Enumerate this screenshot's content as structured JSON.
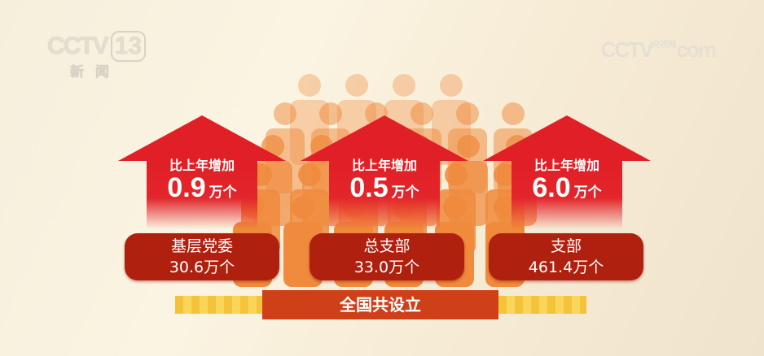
{
  "logos": {
    "left_channel": "CCTV",
    "left_number": "13",
    "left_sub": "新闻",
    "right_brand": "CCTV",
    "right_small": "央视网",
    "right_suffix": "com"
  },
  "arrows": [
    {
      "label": "比上年增加",
      "value": "0.9",
      "unit": "万个"
    },
    {
      "label": "比上年增加",
      "value": "0.5",
      "unit": "万个"
    },
    {
      "label": "比上年增加",
      "value": "6.0",
      "unit": "万个"
    }
  ],
  "cards": [
    {
      "name": "基层党委",
      "count": "30.6万个"
    },
    {
      "name": "总支部",
      "count": "33.0万个"
    },
    {
      "name": "支部",
      "count": "461.4万个"
    }
  ],
  "base_label": "全国共设立",
  "colors": {
    "arrow": "#e01f26",
    "card": "#b0200f",
    "base": "#cf4018",
    "people": "#f08a3c",
    "stripe": "#f5c33a"
  }
}
